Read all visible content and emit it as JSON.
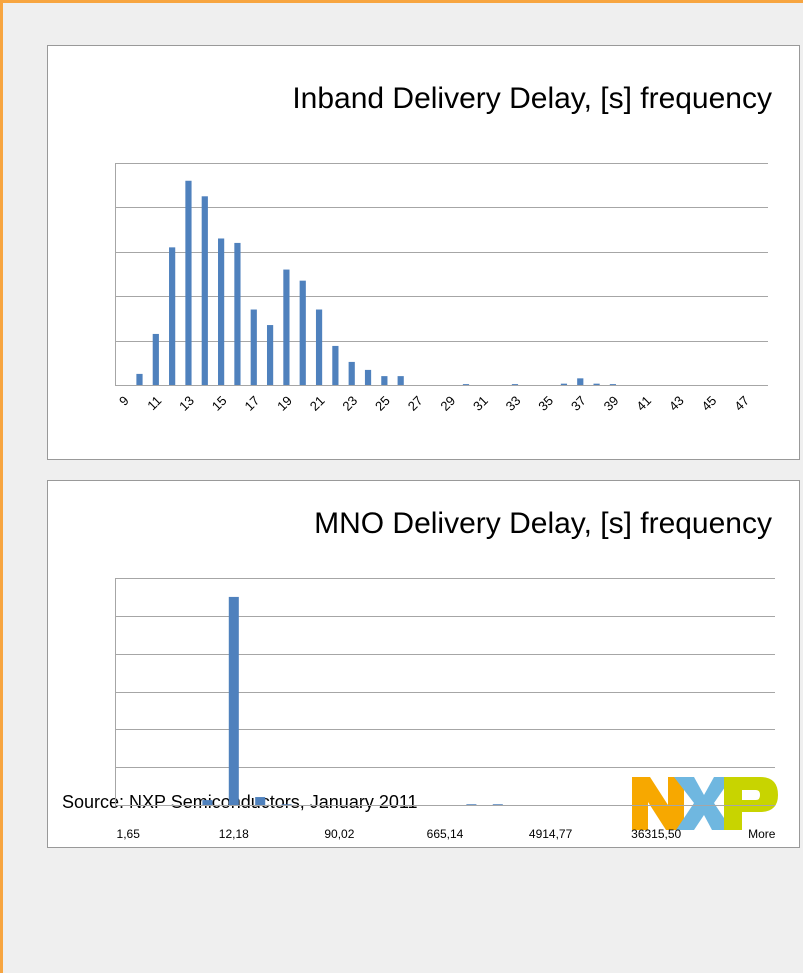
{
  "chart_data": [
    {
      "type": "bar",
      "title": "Inband Delivery Delay, [s] frequency",
      "color": "#4f81bd",
      "categories": [
        "9",
        null,
        "11",
        null,
        "13",
        null,
        "15",
        null,
        "17",
        null,
        "19",
        null,
        "21",
        null,
        "23",
        null,
        "25",
        null,
        "27",
        null,
        "29",
        null,
        "31",
        null,
        "33",
        null,
        "35",
        null,
        "37",
        null,
        "39",
        null,
        "41",
        null,
        "43",
        null,
        "45",
        null,
        "47",
        null
      ],
      "values": [
        0,
        0.25,
        1.15,
        3.1,
        4.6,
        4.25,
        3.3,
        3.2,
        1.7,
        1.35,
        2.6,
        2.35,
        1.7,
        0.88,
        0.52,
        0.34,
        0.2,
        0.2,
        0,
        0,
        0,
        0.02,
        0,
        0,
        0.02,
        0,
        0,
        0.03,
        0.15,
        0.03,
        0.02,
        0,
        0,
        0,
        0,
        0,
        0,
        0,
        0,
        0
      ],
      "ylim": [
        0,
        5
      ],
      "yticks": [
        0,
        1,
        2,
        3,
        4,
        5
      ],
      "grid": true
    },
    {
      "type": "bar",
      "title": "MNO Delivery Delay, [s] frequency",
      "color": "#4f81bd",
      "categories": [
        "1,65",
        null,
        null,
        null,
        "12,18",
        null,
        null,
        null,
        "90,02",
        null,
        null,
        null,
        "665,14",
        null,
        null,
        null,
        "4914,77",
        null,
        null,
        null,
        "36315,50",
        null,
        null,
        null,
        "More"
      ],
      "values": [
        0,
        0,
        0,
        0.13,
        5.5,
        0.21,
        0.02,
        0,
        0,
        0,
        0,
        0,
        0,
        0.02,
        0.02,
        0,
        0,
        0,
        0,
        0,
        0,
        0,
        0,
        0,
        0
      ],
      "ylim": [
        0,
        6
      ],
      "yticks": [
        0,
        1,
        2,
        3,
        4,
        5,
        6
      ],
      "grid": true
    }
  ],
  "source": "Source: NXP Semiconductors, January 2011"
}
